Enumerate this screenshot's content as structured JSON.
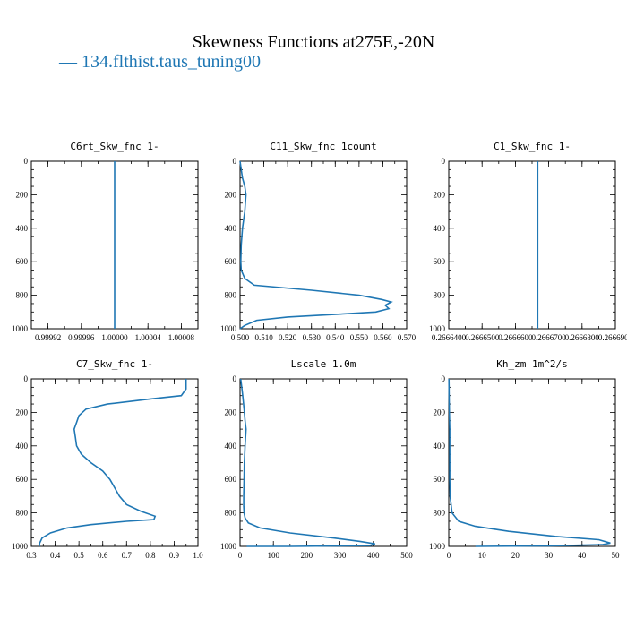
{
  "title": "Skewness Functions at275E,-20N",
  "legend": {
    "label": "134.flthist.taus_tuning00",
    "color": "#1f77b4"
  },
  "chart_data": [
    {
      "type": "line",
      "title": "C6rt_Skw_fnc   1-",
      "xlim": [
        0.9999,
        1.0001
      ],
      "ylim": [
        1000,
        0
      ],
      "xticks": [
        0.99992,
        0.99996,
        1.0,
        1.00004,
        1.00008
      ],
      "xticklabels": [
        "0.99992",
        "0.99996",
        "1.00000",
        "1.00004",
        "1.00008"
      ],
      "yticks": [
        0,
        200,
        400,
        600,
        800,
        1000
      ],
      "series": [
        {
          "x": [
            1.0,
            1.0
          ],
          "y": [
            0,
            1000
          ]
        }
      ]
    },
    {
      "type": "line",
      "title": "C11_Skw_fnc   1count",
      "xlim": [
        0.5,
        0.57
      ],
      "ylim": [
        1000,
        0
      ],
      "xticks": [
        0.5,
        0.51,
        0.52,
        0.53,
        0.54,
        0.55,
        0.56,
        0.57
      ],
      "xticklabels": [
        "0.500",
        "0.510",
        "0.520",
        "0.530",
        "0.540",
        "0.550",
        "0.560",
        "0.570"
      ],
      "yticks": [
        0,
        200,
        400,
        600,
        800,
        1000
      ],
      "series": [
        {
          "x": [
            0.5,
            0.5005,
            0.501,
            0.502,
            0.5025,
            0.502,
            0.501,
            0.5005,
            0.5003,
            0.5005,
            0.502,
            0.506,
            0.53,
            0.55,
            0.5595,
            0.5635,
            0.561,
            0.5625,
            0.557,
            0.545,
            0.52,
            0.507,
            0.502,
            0.5
          ],
          "y": [
            0,
            50,
            100,
            150,
            200,
            300,
            400,
            500,
            600,
            650,
            700,
            740,
            770,
            800,
            825,
            840,
            860,
            880,
            900,
            910,
            930,
            950,
            980,
            1000
          ]
        }
      ]
    },
    {
      "type": "line",
      "title": "C1_Skw_fnc   1-",
      "xlim": [
        0.26664,
        0.26669
      ],
      "ylim": [
        1000,
        0
      ],
      "xticks": [
        0.26664,
        0.26665,
        0.26666,
        0.26667,
        0.26668,
        0.26669
      ],
      "xticklabels": [
        "0.2666400",
        "0.2666500",
        "0.2666600",
        "0.2666700",
        "0.2666800",
        "0.2666900"
      ],
      "yticks": [
        0,
        200,
        400,
        600,
        800,
        1000
      ],
      "series": [
        {
          "x": [
            0.2666667,
            0.2666667
          ],
          "y": [
            0,
            1000
          ]
        }
      ]
    },
    {
      "type": "line",
      "title": "C7_Skw_fnc   1-",
      "xlim": [
        0.3,
        1.0
      ],
      "ylim": [
        1000,
        0
      ],
      "xticks": [
        0.3,
        0.4,
        0.5,
        0.6,
        0.7,
        0.8,
        0.9,
        1.0
      ],
      "xticklabels": [
        "0.3",
        "0.4",
        "0.5",
        "0.6",
        "0.7",
        "0.8",
        "0.9",
        "1.0"
      ],
      "yticks": [
        0,
        200,
        400,
        600,
        800,
        1000
      ],
      "series": [
        {
          "x": [
            0.95,
            0.95,
            0.93,
            0.8,
            0.62,
            0.53,
            0.5,
            0.49,
            0.48,
            0.485,
            0.49,
            0.51,
            0.55,
            0.6,
            0.63,
            0.65,
            0.67,
            0.7,
            0.76,
            0.82,
            0.815,
            0.7,
            0.55,
            0.45,
            0.38,
            0.345,
            0.335,
            0.333
          ],
          "y": [
            0,
            60,
            100,
            120,
            150,
            180,
            220,
            260,
            300,
            350,
            400,
            450,
            500,
            550,
            600,
            650,
            700,
            750,
            790,
            820,
            840,
            850,
            870,
            890,
            920,
            950,
            980,
            1000
          ]
        }
      ]
    },
    {
      "type": "line",
      "title": "Lscale   1.0m",
      "xlim": [
        0,
        500
      ],
      "ylim": [
        1000,
        0
      ],
      "xticks": [
        0,
        100,
        200,
        300,
        400,
        500
      ],
      "xticklabels": [
        "0",
        "100",
        "200",
        "300",
        "400",
        "500"
      ],
      "yticks": [
        0,
        200,
        400,
        600,
        800,
        1000
      ],
      "series": [
        {
          "x": [
            2,
            5,
            8,
            12,
            15,
            18,
            15,
            13,
            12,
            11,
            11,
            12,
            15,
            25,
            60,
            150,
            280,
            360,
            405,
            390,
            150,
            20
          ],
          "y": [
            0,
            50,
            100,
            180,
            250,
            300,
            400,
            500,
            600,
            700,
            760,
            800,
            830,
            860,
            890,
            920,
            950,
            970,
            985,
            995,
            1000,
            1000
          ]
        }
      ]
    },
    {
      "type": "line",
      "title": "Kh_zm   1m^2/s",
      "xlim": [
        0,
        50
      ],
      "ylim": [
        1000,
        0
      ],
      "xticks": [
        0,
        10,
        20,
        30,
        40,
        50
      ],
      "xticklabels": [
        "0",
        "10",
        "20",
        "30",
        "40",
        "50"
      ],
      "yticks": [
        0,
        200,
        400,
        600,
        800,
        1000
      ],
      "series": [
        {
          "x": [
            0.05,
            0.1,
            0.2,
            0.3,
            0.3,
            0.3,
            0.3,
            0.4,
            1.0,
            3.0,
            8.0,
            18.0,
            32.0,
            45.0,
            48.5,
            46.0,
            30.0,
            8.0
          ],
          "y": [
            0,
            100,
            200,
            300,
            400,
            500,
            600,
            700,
            800,
            850,
            880,
            910,
            940,
            960,
            980,
            990,
            997,
            1000
          ]
        }
      ]
    }
  ]
}
